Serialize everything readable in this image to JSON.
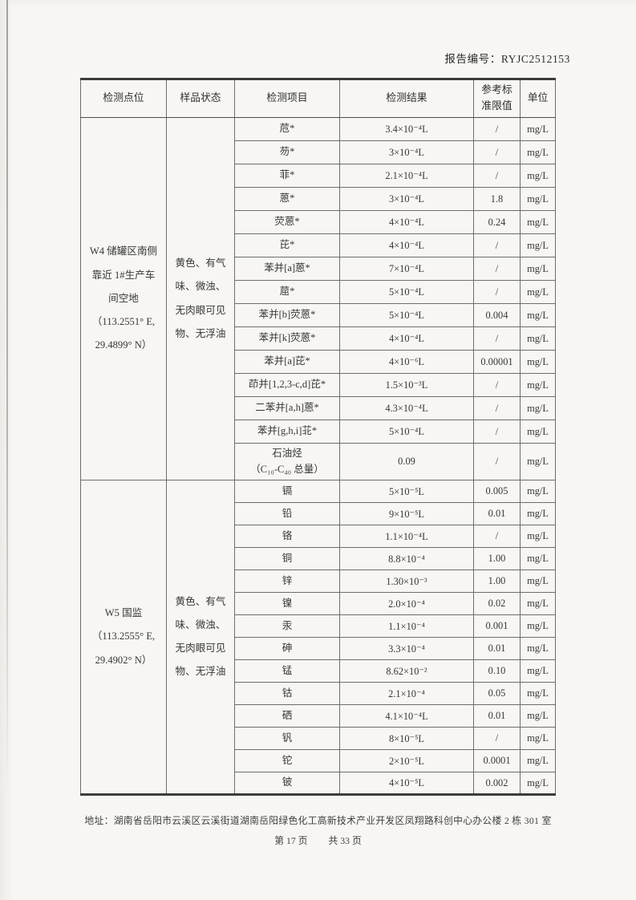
{
  "report": {
    "number_label": "报告编号：RYJC2512153"
  },
  "table": {
    "headers": [
      "检测点位",
      "样品状态",
      "检测项目",
      "检测结果",
      "参考标\n准限值",
      "单位"
    ],
    "sections": [
      {
        "location": "W4 储罐区南侧\n靠近 1#生产车\n间空地\n（113.2551° E,\n29.4899° N）",
        "status": "黄色、有气\n味、微浊、\n无肉眼可见\n物、无浮油",
        "rows": [
          {
            "item": "苊*",
            "result": "3.4×10⁻⁴L",
            "limit": "/",
            "unit": "mg/L"
          },
          {
            "item": "芴*",
            "result": "3×10⁻⁴L",
            "limit": "/",
            "unit": "mg/L"
          },
          {
            "item": "菲*",
            "result": "2.1×10⁻⁴L",
            "limit": "/",
            "unit": "mg/L"
          },
          {
            "item": "蒽*",
            "result": "3×10⁻⁴L",
            "limit": "1.8",
            "unit": "mg/L"
          },
          {
            "item": "荧蒽*",
            "result": "4×10⁻⁴L",
            "limit": "0.24",
            "unit": "mg/L"
          },
          {
            "item": "芘*",
            "result": "4×10⁻⁴L",
            "limit": "/",
            "unit": "mg/L"
          },
          {
            "item": "苯并[a]蒽*",
            "result": "7×10⁻⁴L",
            "limit": "/",
            "unit": "mg/L"
          },
          {
            "item": "䓛*",
            "result": "5×10⁻⁴L",
            "limit": "/",
            "unit": "mg/L"
          },
          {
            "item": "苯并[b]荧蒽*",
            "result": "5×10⁻⁴L",
            "limit": "0.004",
            "unit": "mg/L"
          },
          {
            "item": "苯并[k]荧蒽*",
            "result": "4×10⁻⁴L",
            "limit": "/",
            "unit": "mg/L"
          },
          {
            "item": "苯并[a]芘*",
            "result": "4×10⁻⁶L",
            "limit": "0.00001",
            "unit": "mg/L"
          },
          {
            "item": "茚并[1,2,3-c,d]芘*",
            "result": "1.5×10⁻³L",
            "limit": "/",
            "unit": "mg/L"
          },
          {
            "item": "二苯并[a,h]蒽*",
            "result": "4.3×10⁻⁴L",
            "limit": "/",
            "unit": "mg/L"
          },
          {
            "item": "苯并[g,h,i]苝*",
            "result": "5×10⁻⁴L",
            "limit": "/",
            "unit": "mg/L"
          },
          {
            "item": "石油烃\n（C₁₀-C₄₀ 总量）",
            "result": "0.09",
            "limit": "/",
            "unit": "mg/L"
          }
        ]
      },
      {
        "location": "W5 国监\n（113.2555° E,\n29.4902° N）",
        "status": "黄色、有气\n味、微浊、\n无肉眼可见\n物、无浮油",
        "rows": [
          {
            "item": "镉",
            "result": "5×10⁻⁵L",
            "limit": "0.005",
            "unit": "mg/L"
          },
          {
            "item": "铅",
            "result": "9×10⁻⁵L",
            "limit": "0.01",
            "unit": "mg/L"
          },
          {
            "item": "铬",
            "result": "1.1×10⁻⁴L",
            "limit": "/",
            "unit": "mg/L"
          },
          {
            "item": "铜",
            "result": "8.8×10⁻⁴",
            "limit": "1.00",
            "unit": "mg/L"
          },
          {
            "item": "锌",
            "result": "1.30×10⁻³",
            "limit": "1.00",
            "unit": "mg/L"
          },
          {
            "item": "镍",
            "result": "2.0×10⁻⁴",
            "limit": "0.02",
            "unit": "mg/L"
          },
          {
            "item": "汞",
            "result": "1.1×10⁻⁴",
            "limit": "0.001",
            "unit": "mg/L"
          },
          {
            "item": "砷",
            "result": "3.3×10⁻⁴",
            "limit": "0.01",
            "unit": "mg/L"
          },
          {
            "item": "锰",
            "result": "8.62×10⁻²",
            "limit": "0.10",
            "unit": "mg/L"
          },
          {
            "item": "钴",
            "result": "2.1×10⁻⁴",
            "limit": "0.05",
            "unit": "mg/L"
          },
          {
            "item": "硒",
            "result": "4.1×10⁻⁴L",
            "limit": "0.01",
            "unit": "mg/L"
          },
          {
            "item": "钒",
            "result": "8×10⁻⁵L",
            "limit": "/",
            "unit": "mg/L"
          },
          {
            "item": "铊",
            "result": "2×10⁻⁵L",
            "limit": "0.0001",
            "unit": "mg/L"
          },
          {
            "item": "铍",
            "result": "4×10⁻⁵L",
            "limit": "0.002",
            "unit": "mg/L"
          }
        ]
      }
    ]
  },
  "footer": {
    "address": "地址：湖南省岳阳市云溪区云溪街道湖南岳阳绿色化工高新技术产业开发区凤翔路科创中心办公楼 2 栋 301 室",
    "page_current": "第 17 页",
    "page_total": "共 33 页"
  }
}
